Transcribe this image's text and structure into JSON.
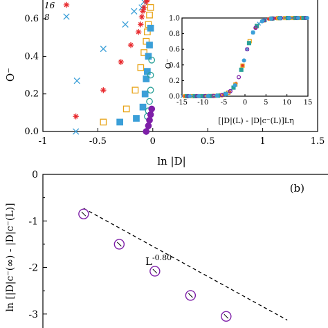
{
  "chart_data": [
    {
      "type": "scatter",
      "xlabel": "ln |D|",
      "ylabel": "O⁻",
      "xlim": [
        -1,
        1.5
      ],
      "ylim": [
        0,
        0.7
      ],
      "xticks": [
        "-1",
        "-0.5",
        "0",
        "0.5",
        "1",
        "1.5"
      ],
      "yticks": [
        "0.0",
        "0.2",
        "0.4",
        "0.6"
      ],
      "legend_visible": [
        "16",
        "8"
      ],
      "series": [
        {
          "name": "8",
          "marker": "x",
          "color": "#3b9fd8",
          "points": [
            [
              -0.7,
              0.0
            ],
            [
              -0.69,
              0.27
            ],
            [
              -0.45,
              0.44
            ],
            [
              -0.25,
              0.57
            ],
            [
              -0.17,
              0.64
            ],
            [
              -0.1,
              0.66
            ],
            [
              -0.08,
              0.69
            ]
          ]
        },
        {
          "name": "16",
          "marker": "star",
          "color": "#e8282c",
          "points": [
            [
              -0.7,
              0.08
            ],
            [
              -0.45,
              0.22
            ],
            [
              -0.29,
              0.37
            ],
            [
              -0.2,
              0.46
            ],
            [
              -0.13,
              0.53
            ],
            [
              -0.11,
              0.57
            ],
            [
              -0.1,
              0.61
            ],
            [
              -0.09,
              0.64
            ],
            [
              -0.08,
              0.66
            ],
            [
              -0.06,
              0.69
            ],
            [
              -0.05,
              0.7
            ]
          ]
        },
        {
          "name": "",
          "marker": "square-open",
          "color": "#e8a317",
          "points": [
            [
              -0.45,
              0.05
            ],
            [
              -0.24,
              0.12
            ],
            [
              -0.16,
              0.22
            ],
            [
              -0.11,
              0.34
            ],
            [
              -0.08,
              0.42
            ],
            [
              -0.06,
              0.48
            ],
            [
              -0.05,
              0.53
            ],
            [
              -0.04,
              0.57
            ],
            [
              -0.03,
              0.62
            ],
            [
              -0.02,
              0.66
            ]
          ]
        },
        {
          "name": "",
          "marker": "square-filled",
          "color": "#3b9fd8",
          "points": [
            [
              -0.3,
              0.05
            ],
            [
              -0.15,
              0.07
            ],
            [
              -0.09,
              0.13
            ],
            [
              -0.07,
              0.2
            ],
            [
              -0.06,
              0.28
            ],
            [
              -0.05,
              0.32
            ],
            [
              -0.04,
              0.4
            ],
            [
              -0.03,
              0.46
            ],
            [
              -0.02,
              0.55
            ]
          ]
        },
        {
          "name": "",
          "marker": "circle-open",
          "color": "#2aa198",
          "points": [
            [
              -0.05,
              0.08
            ],
            [
              -0.04,
              0.11
            ],
            [
              -0.03,
              0.16
            ],
            [
              -0.02,
              0.22
            ],
            [
              -0.02,
              0.3
            ],
            [
              -0.01,
              0.38
            ]
          ]
        },
        {
          "name": "",
          "marker": "circle-filled",
          "color": "#7e1fa8",
          "points": [
            [
              -0.06,
              0.0
            ],
            [
              -0.04,
              0.03
            ],
            [
              -0.03,
              0.06
            ],
            [
              -0.02,
              0.09
            ],
            [
              -0.01,
              0.12
            ]
          ]
        }
      ]
    },
    {
      "type": "line",
      "inset": true,
      "xlabel": "[|D|(L) - |D|c⁻(L)]Lη",
      "ylabel": "O⁻",
      "xlim": [
        -15,
        15
      ],
      "ylim": [
        0,
        1.0
      ],
      "xticks": [
        "-15",
        "-10",
        "-5",
        "0",
        "5",
        "10",
        "15"
      ],
      "yticks": [
        "0.0",
        "0.2",
        "0.4",
        "0.6",
        "0.8",
        "1.0"
      ]
    },
    {
      "type": "scatter",
      "label": "(b)",
      "ylabel": "ln [|D|c⁻(∞) - |D|c⁻(L)]",
      "ylim": [
        -3.3,
        0
      ],
      "yticks": [
        "0",
        "-1",
        "-2",
        "-3"
      ],
      "annotation": "L",
      "annotation_exponent": "-0.80",
      "fit_line": {
        "x": [
          1.0,
          3.0
        ],
        "y": [
          -0.73,
          -3.13
        ]
      },
      "points": [
        {
          "x": 1.0,
          "y": -0.85
        },
        {
          "x": 1.35,
          "y": -1.5
        },
        {
          "x": 1.7,
          "y": -2.08
        },
        {
          "x": 2.05,
          "y": -2.6
        },
        {
          "x": 2.4,
          "y": -3.05
        }
      ]
    }
  ]
}
